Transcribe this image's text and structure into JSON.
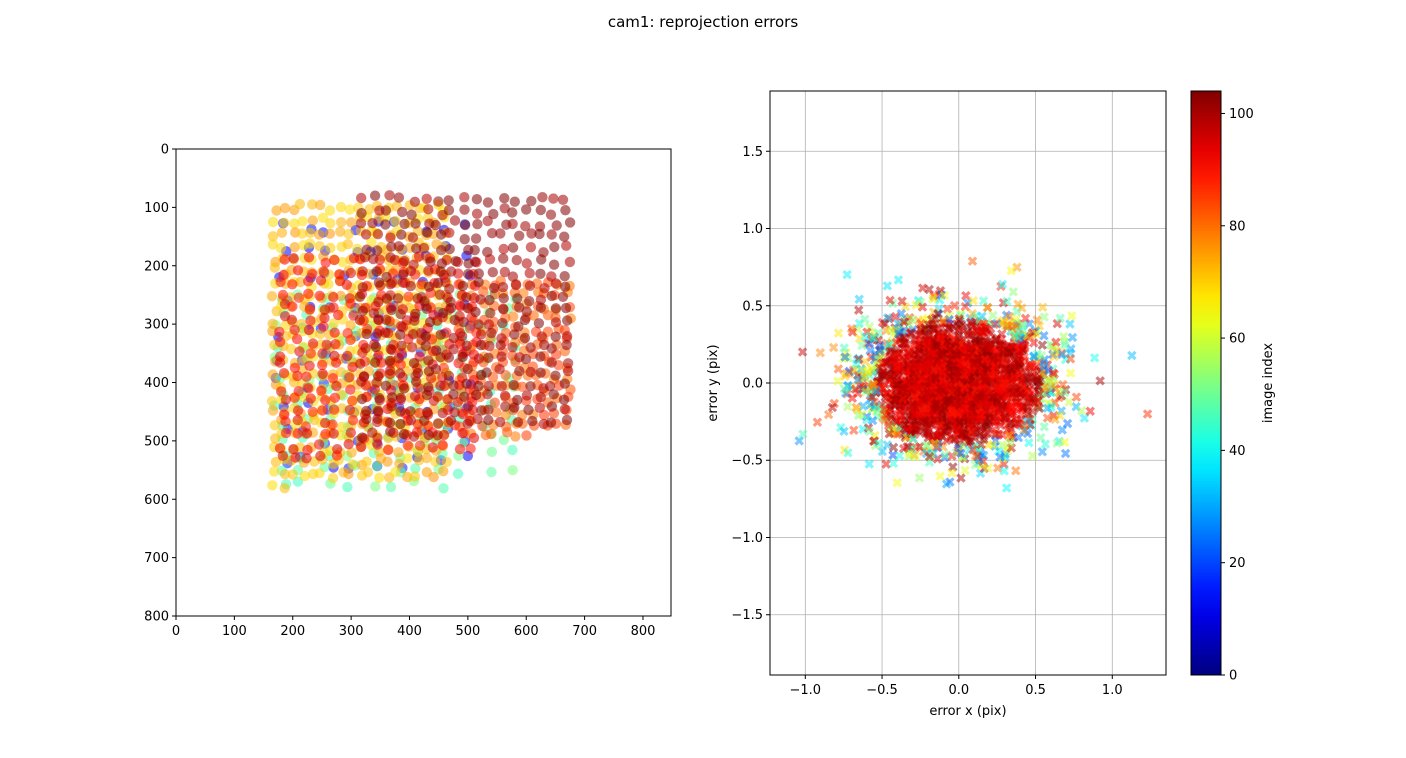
{
  "figure": {
    "suptitle": "cam1: reprojection errors"
  },
  "colormap": "jet",
  "chart_data": [
    {
      "type": "scatter",
      "panel": "left",
      "title": "",
      "xlabel": "",
      "ylabel": "",
      "xlim": [
        0,
        848
      ],
      "ylim": [
        800,
        0
      ],
      "y_inverted": true,
      "grid": false,
      "x_ticks": [
        0,
        100,
        200,
        300,
        400,
        500,
        600,
        700,
        800
      ],
      "y_ticks": [
        0,
        100,
        200,
        300,
        400,
        500,
        600,
        700,
        800
      ],
      "marker": "circle",
      "point_groups": [
        {
          "name": "blue early images",
          "image_index": 14,
          "x_range": [
            160,
            520
          ],
          "y_range": [
            110,
            560
          ],
          "count": 90
        },
        {
          "name": "green-cyan images",
          "image_index": 48,
          "x_range": [
            160,
            590
          ],
          "y_range": [
            240,
            590
          ],
          "count": 140
        },
        {
          "name": "yellow-orange images",
          "image_index": 72,
          "x_range": [
            160,
            470
          ],
          "y_range": [
            90,
            590
          ],
          "count": 420
        },
        {
          "name": "orange right wing",
          "image_index": 82,
          "x_range": [
            480,
            680
          ],
          "y_range": [
            220,
            500
          ],
          "count": 150
        },
        {
          "name": "red images",
          "image_index": 92,
          "x_range": [
            170,
            520
          ],
          "y_range": [
            180,
            540
          ],
          "count": 260
        },
        {
          "name": "dark red grids",
          "image_index": 102,
          "x_range": [
            310,
            680
          ],
          "y_range": [
            75,
            500
          ],
          "count": 330
        }
      ]
    },
    {
      "type": "scatter",
      "panel": "right",
      "title": "",
      "xlabel": "error x (pix)",
      "ylabel": "error y (pix)",
      "xlim": [
        -1.23,
        1.35
      ],
      "ylim": [
        -1.89,
        1.89
      ],
      "grid": true,
      "x_ticks": [
        -1.0,
        -0.5,
        0.0,
        0.5,
        1.0
      ],
      "y_ticks": [
        -1.5,
        -1.0,
        -0.5,
        0.0,
        0.5,
        1.0,
        1.5
      ],
      "x_tick_labels": [
        "−1.0",
        "−0.5",
        "0.0",
        "0.5",
        "1.0"
      ],
      "y_tick_labels": [
        "−1.5",
        "−1.0",
        "−0.5",
        "0.0",
        "0.5",
        "1.0",
        "1.5"
      ],
      "marker": "x",
      "distribution": {
        "center": [
          -0.02,
          0.0
        ],
        "std_x": 0.3,
        "std_y": 0.22,
        "count": 2600,
        "x_extent": [
          -1.12,
          1.23
        ],
        "y_extent": [
          -0.79,
          0.83
        ]
      }
    },
    {
      "type": "colorbar",
      "label": "image index",
      "range": [
        0,
        104
      ],
      "ticks": [
        0,
        20,
        40,
        60,
        80,
        100
      ]
    }
  ]
}
